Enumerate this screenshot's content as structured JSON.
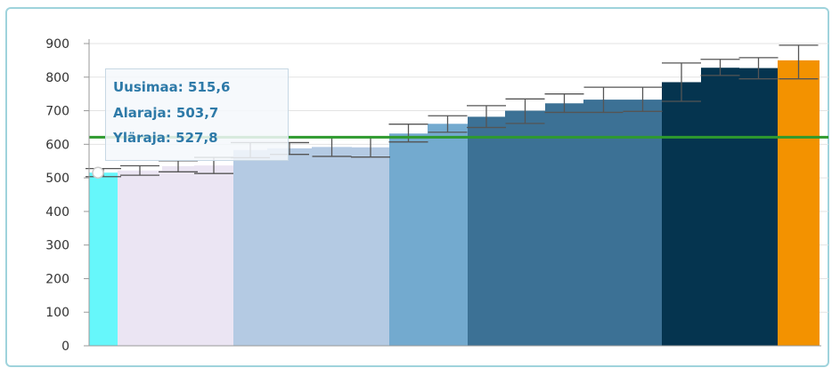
{
  "chart_data": {
    "type": "bar",
    "title": "",
    "xlabel": "",
    "ylabel": "",
    "ylim": [
      0,
      900
    ],
    "yticks": [
      0,
      100,
      200,
      300,
      400,
      500,
      600,
      700,
      800,
      900
    ],
    "grid": true,
    "reference_line": {
      "value": 621,
      "color": "#2e9a2e"
    },
    "bars": [
      {
        "value": 515.6,
        "lower": 503.7,
        "upper": 527.8,
        "color": "#66f7fb"
      },
      {
        "value": 522,
        "lower": 508,
        "upper": 536,
        "color": "#ebe5f3"
      },
      {
        "value": 535,
        "lower": 518,
        "upper": 551,
        "color": "#ebe5f3"
      },
      {
        "value": 537,
        "lower": 513,
        "upper": 561,
        "color": "#ebe5f3"
      },
      {
        "value": 583,
        "lower": 560,
        "upper": 605,
        "color": "#b4cae3"
      },
      {
        "value": 588,
        "lower": 570,
        "upper": 605,
        "color": "#b4cae3"
      },
      {
        "value": 592,
        "lower": 564,
        "upper": 620,
        "color": "#b4cae3"
      },
      {
        "value": 591,
        "lower": 562,
        "upper": 620,
        "color": "#b4cae3"
      },
      {
        "value": 632,
        "lower": 607,
        "upper": 660,
        "color": "#73aacf"
      },
      {
        "value": 661,
        "lower": 636,
        "upper": 685,
        "color": "#73aacf"
      },
      {
        "value": 682,
        "lower": 650,
        "upper": 715,
        "color": "#3c7195"
      },
      {
        "value": 700,
        "lower": 662,
        "upper": 735,
        "color": "#3c7195"
      },
      {
        "value": 722,
        "lower": 695,
        "upper": 750,
        "color": "#3c7195"
      },
      {
        "value": 733,
        "lower": 695,
        "upper": 770,
        "color": "#3c7195"
      },
      {
        "value": 733,
        "lower": 698,
        "upper": 770,
        "color": "#3c7195"
      },
      {
        "value": 785,
        "lower": 728,
        "upper": 842,
        "color": "#05344f"
      },
      {
        "value": 828,
        "lower": 805,
        "upper": 853,
        "color": "#05344f"
      },
      {
        "value": 827,
        "lower": 795,
        "upper": 858,
        "color": "#05344f"
      },
      {
        "value": 850,
        "lower": 795,
        "upper": 895,
        "color": "#f39200"
      }
    ],
    "tooltip": {
      "line1": "Uusimaa: 515,6",
      "line2": "Alaraja: 503,7",
      "line3": "Yläraja: 527,8"
    }
  }
}
